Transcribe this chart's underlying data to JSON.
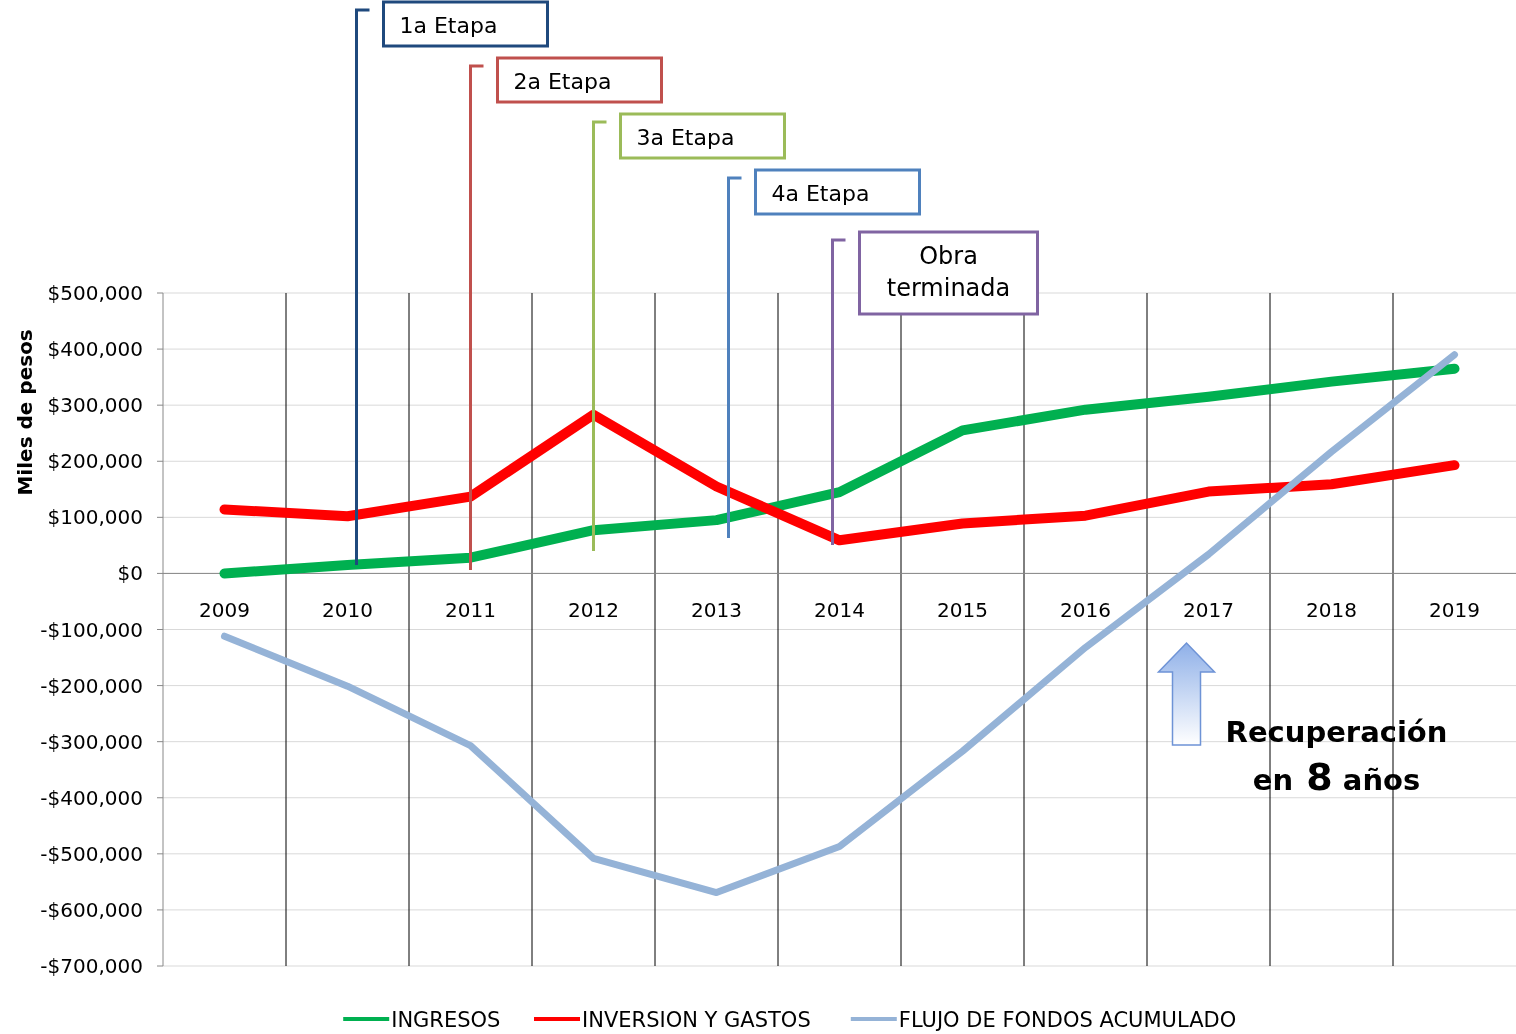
{
  "chart_data": {
    "type": "line",
    "ylabel": "Miles de pesos",
    "categories": [
      "2009",
      "2010",
      "2011",
      "2012",
      "2013",
      "2014",
      "2015",
      "2016",
      "2017",
      "2018",
      "2019"
    ],
    "series": [
      {
        "name": "INGRESOS",
        "color": "#00b050",
        "values": [
          0,
          15000,
          28000,
          77000,
          95000,
          145000,
          255000,
          292000,
          315000,
          342000,
          365000
        ]
      },
      {
        "name": "INVERSION Y GASTOS",
        "color": "#ff0000",
        "values": [
          114000,
          102000,
          137000,
          283000,
          155000,
          59000,
          89000,
          103000,
          146000,
          159000,
          193000
        ]
      },
      {
        "name": "FLUJO DE FONDOS ACUMULADO",
        "color": "#95b3d7",
        "values": [
          -112000,
          -201000,
          -307000,
          -508000,
          -569000,
          -487000,
          -317000,
          -132000,
          34000,
          217000,
          390000
        ]
      }
    ],
    "ylim": [
      -700000,
      500000
    ],
    "yticks": [
      {
        "value": -700000,
        "label": "-$700,000"
      },
      {
        "value": -600000,
        "label": "-$600,000"
      },
      {
        "value": -500000,
        "label": "-$500,000"
      },
      {
        "value": -400000,
        "label": "-$400,000"
      },
      {
        "value": -300000,
        "label": "-$300,000"
      },
      {
        "value": -200000,
        "label": "-$200,000"
      },
      {
        "value": -100000,
        "label": "-$100,000"
      },
      {
        "value": 0,
        "label": "$0"
      },
      {
        "value": 100000,
        "label": "$100,000"
      },
      {
        "value": 200000,
        "label": "$200,000"
      },
      {
        "value": 300000,
        "label": "$300,000"
      },
      {
        "value": 400000,
        "label": "$400,000"
      },
      {
        "value": 500000,
        "label": "$500,000"
      }
    ],
    "grid": true,
    "legend": "bottom",
    "marker": "none",
    "line_style": "solid",
    "annotations": [
      "1a Etapa",
      "2a Etapa",
      "3a Etapa",
      "4a Etapa",
      "Obra terminada",
      "Recuperación en 8 años"
    ]
  }
}
